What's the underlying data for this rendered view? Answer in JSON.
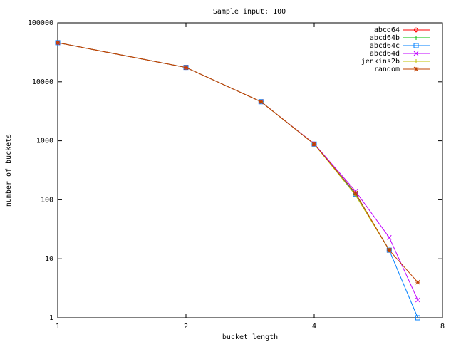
{
  "chart_data": {
    "type": "line",
    "title": "Sample input: 100",
    "x_label": "bucket length",
    "y_label": "number of buckets",
    "x": [
      1,
      2,
      3,
      4,
      5,
      6,
      7
    ],
    "xscale": "log",
    "yscale": "log",
    "xlim": [
      1,
      8
    ],
    "xticks": [
      1,
      2,
      4,
      8
    ],
    "ylim": [
      1,
      100000
    ],
    "yticks": [
      1,
      10,
      100,
      1000,
      10000,
      100000
    ],
    "legend": "top-right",
    "series": [
      {
        "name": "abcd64",
        "color": "#ff0000",
        "marker": "diamond",
        "values": [
          46000,
          17500,
          4600,
          880,
          125,
          14,
          null
        ]
      },
      {
        "name": "abcd64b",
        "color": "#00c000",
        "marker": "plus",
        "values": [
          46000,
          17500,
          4600,
          880,
          125,
          14,
          null
        ]
      },
      {
        "name": "abcd64c",
        "color": "#0080ff",
        "marker": "square",
        "values": [
          46000,
          17500,
          4600,
          880,
          125,
          14,
          1
        ]
      },
      {
        "name": "abcd64d",
        "color": "#c000ff",
        "marker": "cross",
        "values": [
          46000,
          17500,
          4600,
          890,
          140,
          23,
          2
        ]
      },
      {
        "name": "jenkins2b",
        "color": "#c0c000",
        "marker": "plus",
        "values": [
          46000,
          17500,
          4600,
          880,
          120,
          14,
          null
        ]
      },
      {
        "name": "random",
        "color": "#c04000",
        "marker": "star",
        "values": [
          46000,
          17500,
          4600,
          880,
          130,
          14,
          4
        ]
      }
    ]
  }
}
